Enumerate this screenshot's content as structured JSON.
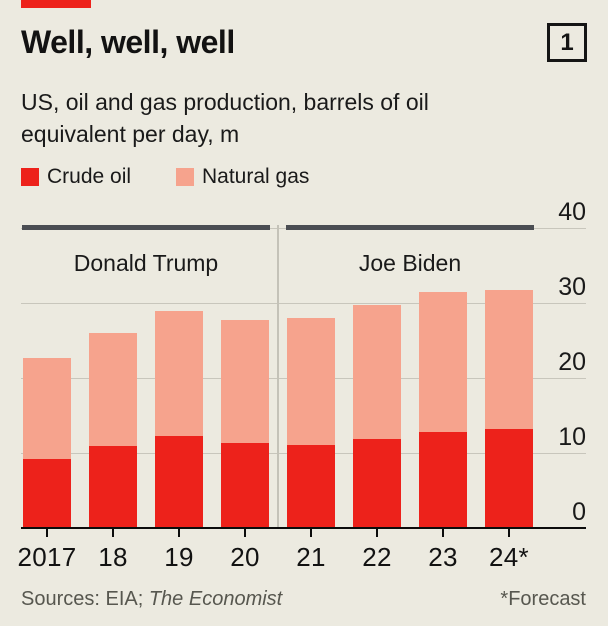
{
  "page": {
    "background": "#ECEAE0",
    "accent_red": "#ED221B"
  },
  "header": {
    "title": "Well, well, well",
    "badge": "1"
  },
  "subtitle": {
    "line1": "US, oil and gas production, barrels of oil",
    "line2": "equivalent per day, m"
  },
  "legend": {
    "items": [
      {
        "label": "Crude oil",
        "color": "#ED221B"
      },
      {
        "label": "Natural gas",
        "color": "#F6A38D"
      }
    ]
  },
  "chart_data": {
    "type": "bar",
    "stacked": true,
    "title": "Well, well, well",
    "subtitle": "US, oil and gas production, barrels of oil equivalent per day, m",
    "categories": [
      "2017",
      "18",
      "19",
      "20",
      "21",
      "22",
      "23",
      "24*"
    ],
    "series": [
      {
        "name": "Crude oil",
        "color": "#ED221B",
        "values": [
          9.2,
          10.9,
          12.2,
          11.3,
          11.1,
          11.8,
          12.8,
          13.2
        ]
      },
      {
        "name": "Natural gas",
        "color": "#F6A38D",
        "values": [
          13.4,
          15.1,
          16.6,
          16.4,
          16.9,
          17.8,
          18.6,
          18.5
        ]
      }
    ],
    "stacked_totals": [
      22.6,
      26.0,
      28.8,
      27.7,
      28.0,
      29.6,
      31.4,
      31.7
    ],
    "ylim": [
      0,
      40
    ],
    "yticks": [
      0,
      10,
      20,
      30,
      40
    ],
    "grid": "horizontal",
    "legend_position": "top-left",
    "period_annotations": [
      {
        "label": "Donald Trump",
        "from_category": "2017",
        "to_category": "20"
      },
      {
        "label": "Joe Biden",
        "from_category": "21",
        "to_category": "24*"
      }
    ],
    "forecast_category": "24*"
  },
  "footer": {
    "sources_prefix": "Sources: EIA; ",
    "sources_publication": "The Economist",
    "note": "*Forecast"
  }
}
